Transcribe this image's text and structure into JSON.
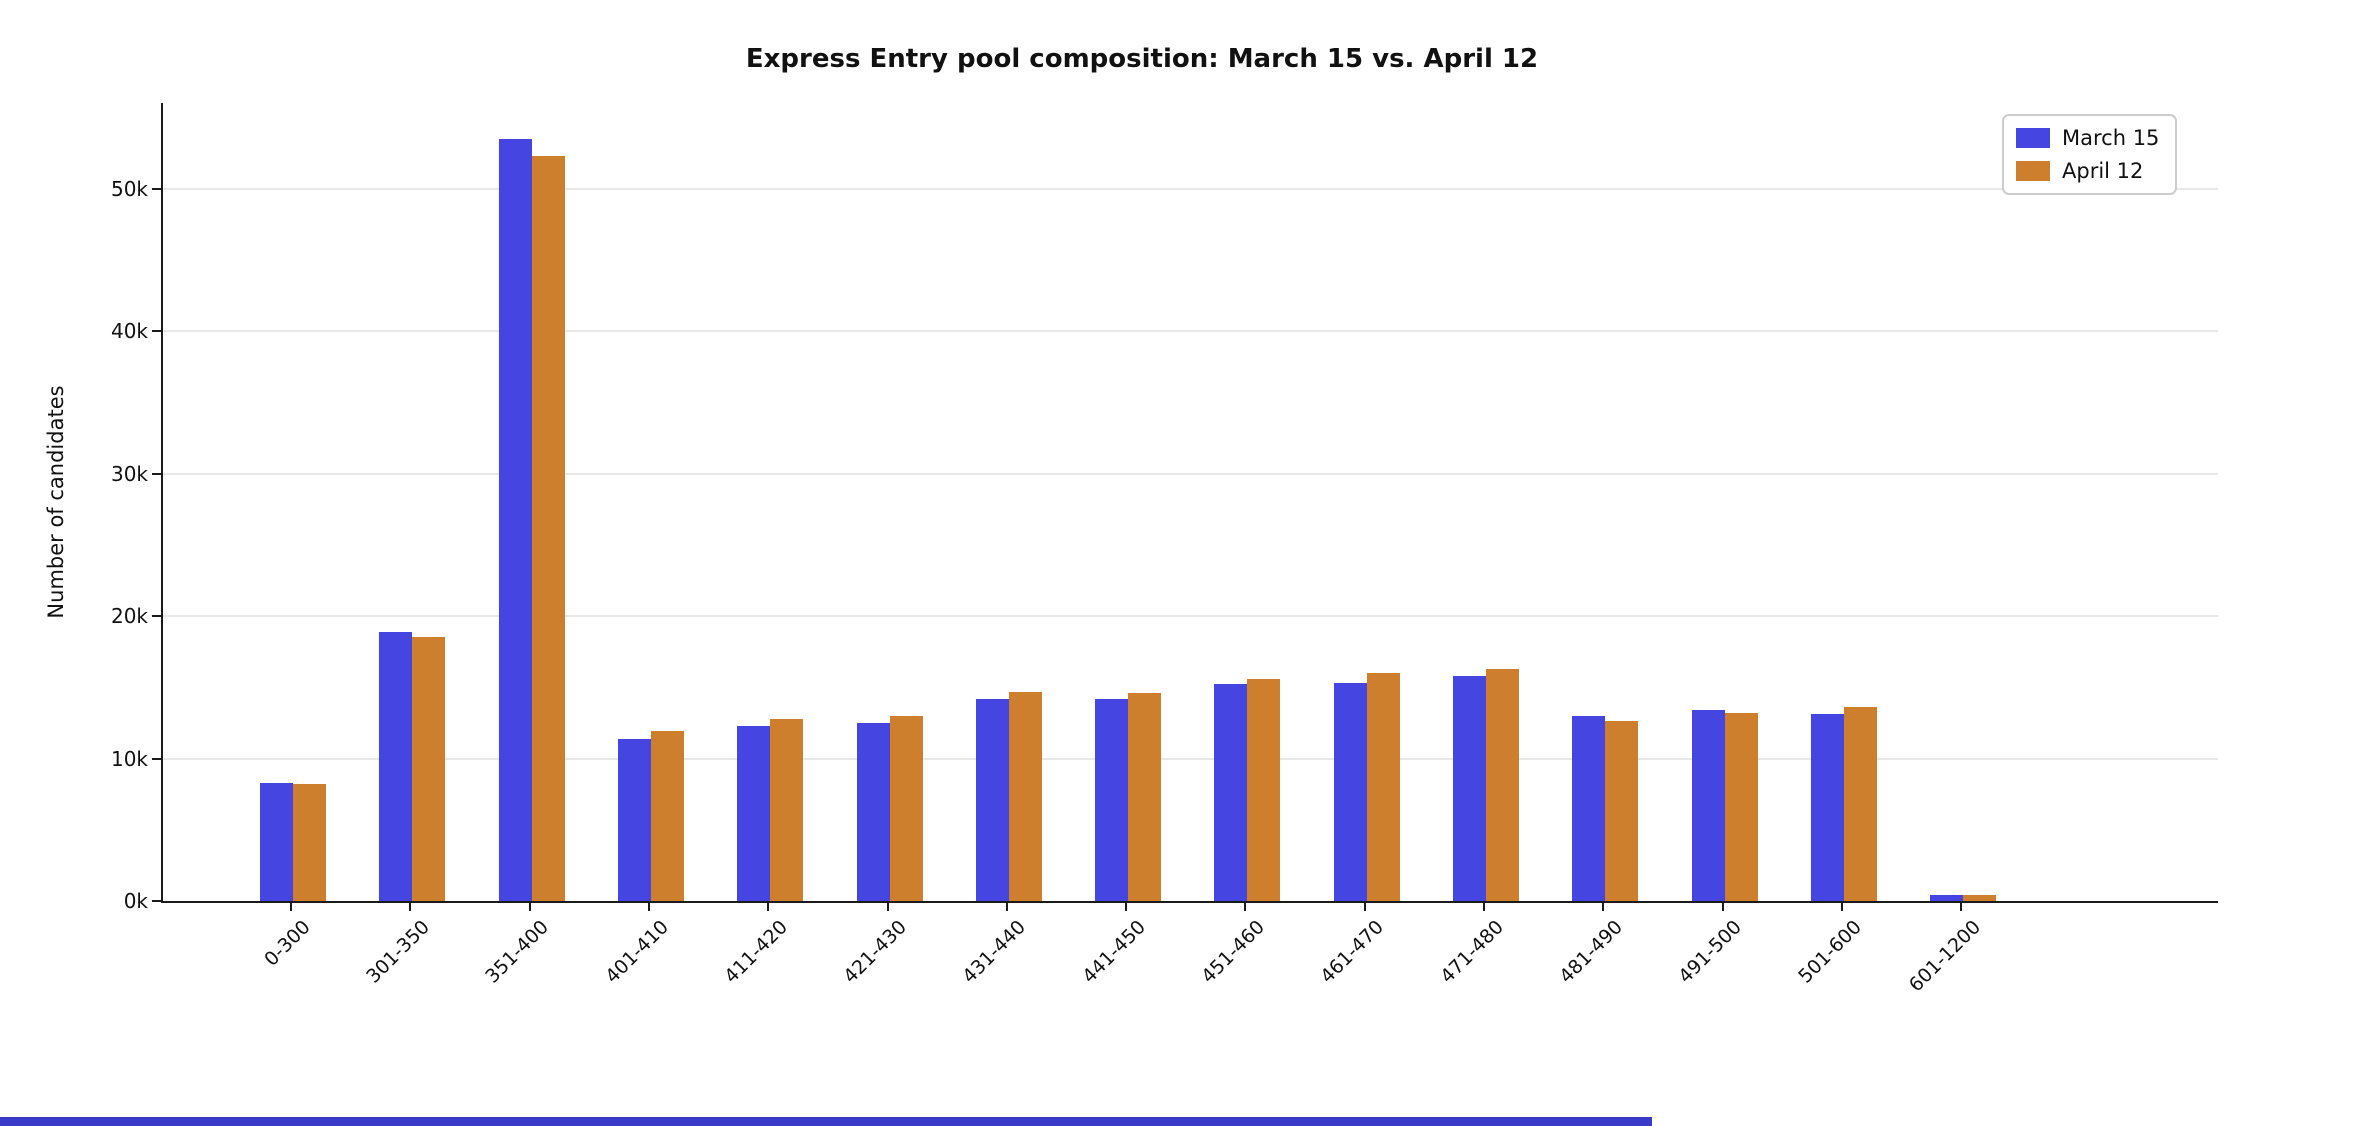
{
  "chart_data": {
    "type": "bar",
    "title": "Express Entry pool composition: March 15 vs. April 12",
    "xlabel": "",
    "ylabel": "Number of candidates",
    "categories": [
      "0-300",
      "301-350",
      "351-400",
      "401-410",
      "411-420",
      "421-430",
      "431-440",
      "441-450",
      "451-460",
      "461-470",
      "471-480",
      "481-490",
      "491-500",
      "501-600",
      "601-1200"
    ],
    "series": [
      {
        "name": "March 15",
        "color": "#4545e1",
        "values": [
          8300,
          18900,
          53500,
          11400,
          12300,
          12500,
          14200,
          14200,
          15200,
          15300,
          15800,
          13000,
          13400,
          13100,
          400
        ]
      },
      {
        "name": "April 12",
        "color": "#cd7f2e",
        "values": [
          8200,
          18500,
          52300,
          11900,
          12800,
          13000,
          14700,
          14600,
          15600,
          16000,
          16300,
          12600,
          13200,
          13600,
          400
        ]
      }
    ],
    "ylim": [
      0,
      56000
    ],
    "yticks": [
      {
        "value": 0,
        "label": "0k"
      },
      {
        "value": 10000,
        "label": "10k"
      },
      {
        "value": 20000,
        "label": "20k"
      },
      {
        "value": 30000,
        "label": "30k"
      },
      {
        "value": 40000,
        "label": "40k"
      },
      {
        "value": 50000,
        "label": "50k"
      }
    ],
    "grid": true,
    "legend_position": "upper right"
  },
  "colors": {
    "axis": "#1a1a1a",
    "gridline": "#e8e8e8",
    "background": "#ffffff",
    "bottom_strip": "#3a3ac8"
  }
}
